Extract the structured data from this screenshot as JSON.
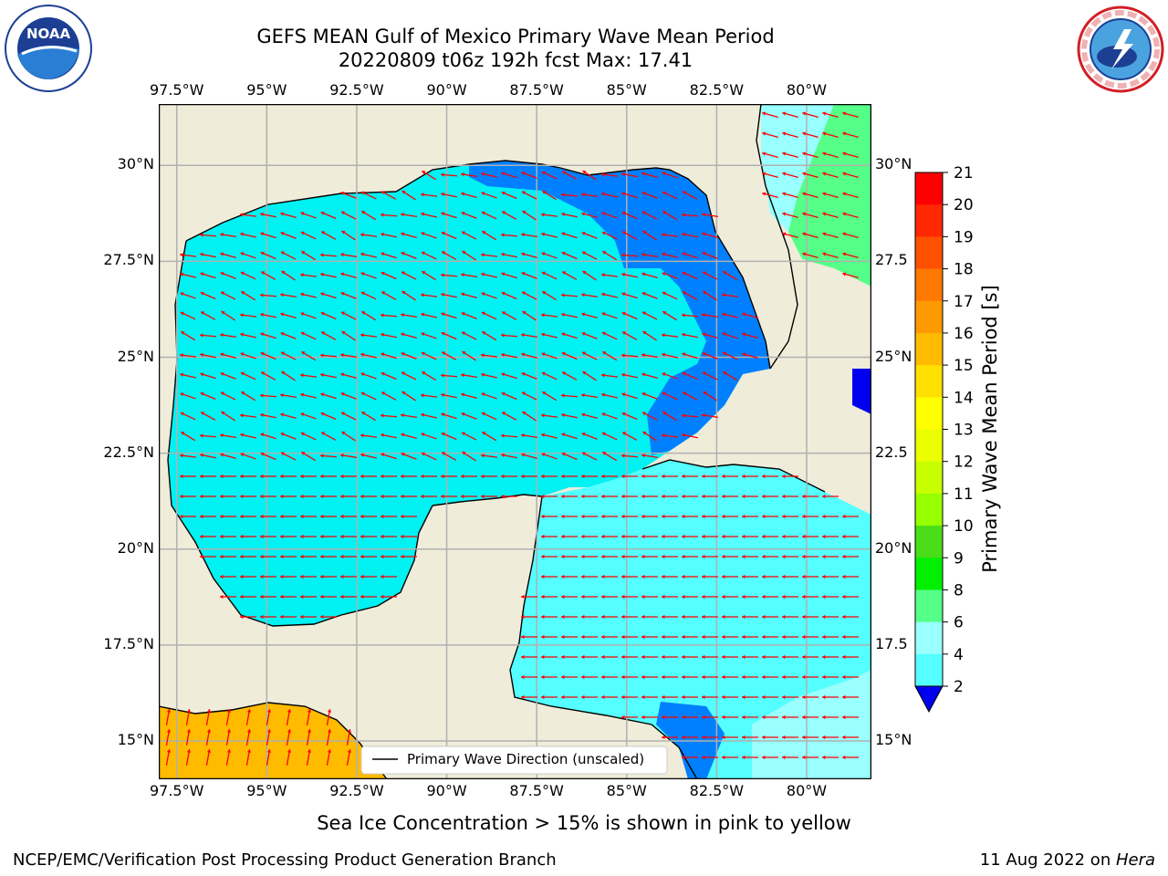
{
  "title": {
    "line1": "GEFS MEAN Gulf of Mexico Primary Wave Mean Period",
    "line2": "20220809 t06z 192h fcst   Max: 17.41"
  },
  "logos": {
    "noaa": {
      "text": "NOAA",
      "ring_text": "NATIONAL OCEANIC AND ATMOSPHERIC ADMINISTRATION · U.S. DEPARTMENT OF COMMERCE"
    },
    "nws": {
      "ring_text": "NATIONAL WEATHER SERVICE"
    }
  },
  "map": {
    "lon_labels": [
      "97.5°W",
      "95°W",
      "92.5°W",
      "90°W",
      "87.5°W",
      "85°W",
      "82.5°W",
      "80°W"
    ],
    "lon_values": [
      -97.5,
      -95,
      -92.5,
      -90,
      -87.5,
      -85,
      -82.5,
      -80
    ],
    "lat_labels": [
      "30°N",
      "27.5°N",
      "25°N",
      "22.5°N",
      "20°N",
      "17.5°N",
      "15°N"
    ],
    "lat_values": [
      30,
      27.5,
      25,
      22.5,
      20,
      17.5,
      15
    ],
    "right_lat_labels": [
      "30°N",
      "27.5",
      "25°N",
      "22.5",
      "20°N",
      "17.5",
      "15°N"
    ],
    "extent": {
      "lon": [
        -98,
        -78.2
      ],
      "lat": [
        14,
        31.6
      ]
    },
    "legend_label": "Primary Wave Direction (unscaled)",
    "colors": {
      "land": "#efecda",
      "coast": "#000000",
      "grid": "#b0b0b0",
      "arrow": "#ff0000"
    }
  },
  "colorbar": {
    "label": "Primary Wave Mean Period [s]",
    "ticks": [
      "21",
      "20",
      "19",
      "18",
      "17",
      "16",
      "15",
      "14",
      "13",
      "12",
      "11",
      "10",
      "9",
      "8",
      "6",
      "4",
      "2"
    ],
    "colors": [
      "#ff0000",
      "#ff2800",
      "#ff5000",
      "#ff7800",
      "#ff9900",
      "#ffbb00",
      "#ffe000",
      "#ffff00",
      "#ebff00",
      "#c8ff00",
      "#96ff00",
      "#4bdd19",
      "#00f000",
      "#55ff88",
      "#99ffff",
      "#55ffff",
      "#00ffff",
      "#0080ff"
    ],
    "extend_color": "#0000ee"
  },
  "caption": "Sea Ice Concentration > 15% is shown in pink to yellow",
  "footer": {
    "left": "NCEP/EMC/Verification Post Processing Product Generation Branch",
    "right_prefix": "11 Aug 2022 on ",
    "right_host": "Hera"
  }
}
